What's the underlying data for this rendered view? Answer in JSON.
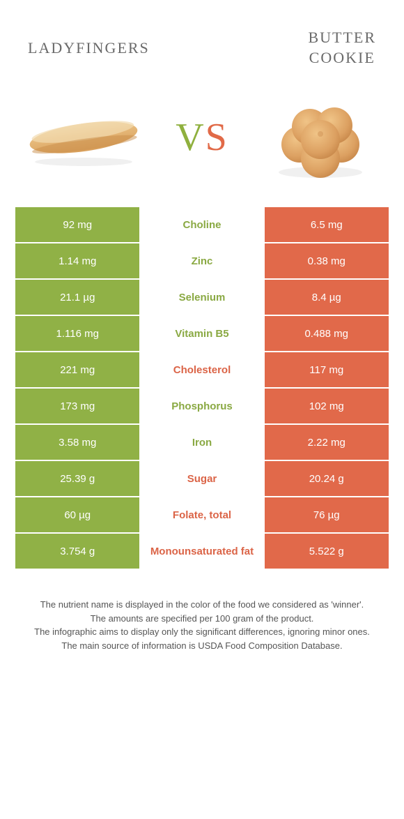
{
  "colors": {
    "left": "#90b146",
    "right": "#e1694a",
    "leftText": "#8aa943",
    "rightText": "#db6447",
    "titleText": "#6a6a6a",
    "bodyText": "#555555",
    "ladyfinger_top": "#e6b97a",
    "ladyfinger_bottom": "#d9a05c",
    "cookie": "#dca061",
    "cookie_dark": "#c8884a"
  },
  "header": {
    "left": "LADYFINGERS",
    "right_line1": "BUTTER",
    "right_line2": "COOKIE"
  },
  "vs": {
    "v": "V",
    "s": "S"
  },
  "rows": [
    {
      "left": "92 mg",
      "mid": "Choline",
      "right": "6.5 mg",
      "winner": "left"
    },
    {
      "left": "1.14 mg",
      "mid": "Zinc",
      "right": "0.38 mg",
      "winner": "left"
    },
    {
      "left": "21.1 µg",
      "mid": "Selenium",
      "right": "8.4 µg",
      "winner": "left"
    },
    {
      "left": "1.116 mg",
      "mid": "Vitamin B5",
      "right": "0.488 mg",
      "winner": "left"
    },
    {
      "left": "221 mg",
      "mid": "Cholesterol",
      "right": "117 mg",
      "winner": "right"
    },
    {
      "left": "173 mg",
      "mid": "Phosphorus",
      "right": "102 mg",
      "winner": "left"
    },
    {
      "left": "3.58 mg",
      "mid": "Iron",
      "right": "2.22 mg",
      "winner": "left"
    },
    {
      "left": "25.39 g",
      "mid": "Sugar",
      "right": "20.24 g",
      "winner": "right"
    },
    {
      "left": "60 µg",
      "mid": "Folate, total",
      "right": "76 µg",
      "winner": "right"
    },
    {
      "left": "3.754 g",
      "mid": "Monounsaturated fat",
      "right": "5.522 g",
      "winner": "right"
    }
  ],
  "footer": {
    "line1": "The nutrient name is displayed in the color of the food we considered as 'winner'.",
    "line2": "The amounts are specified per 100 gram of the product.",
    "line3": "The infographic aims to display only the significant differences, ignoring minor ones.",
    "line4": "The main source of information is USDA Food Composition Database."
  }
}
